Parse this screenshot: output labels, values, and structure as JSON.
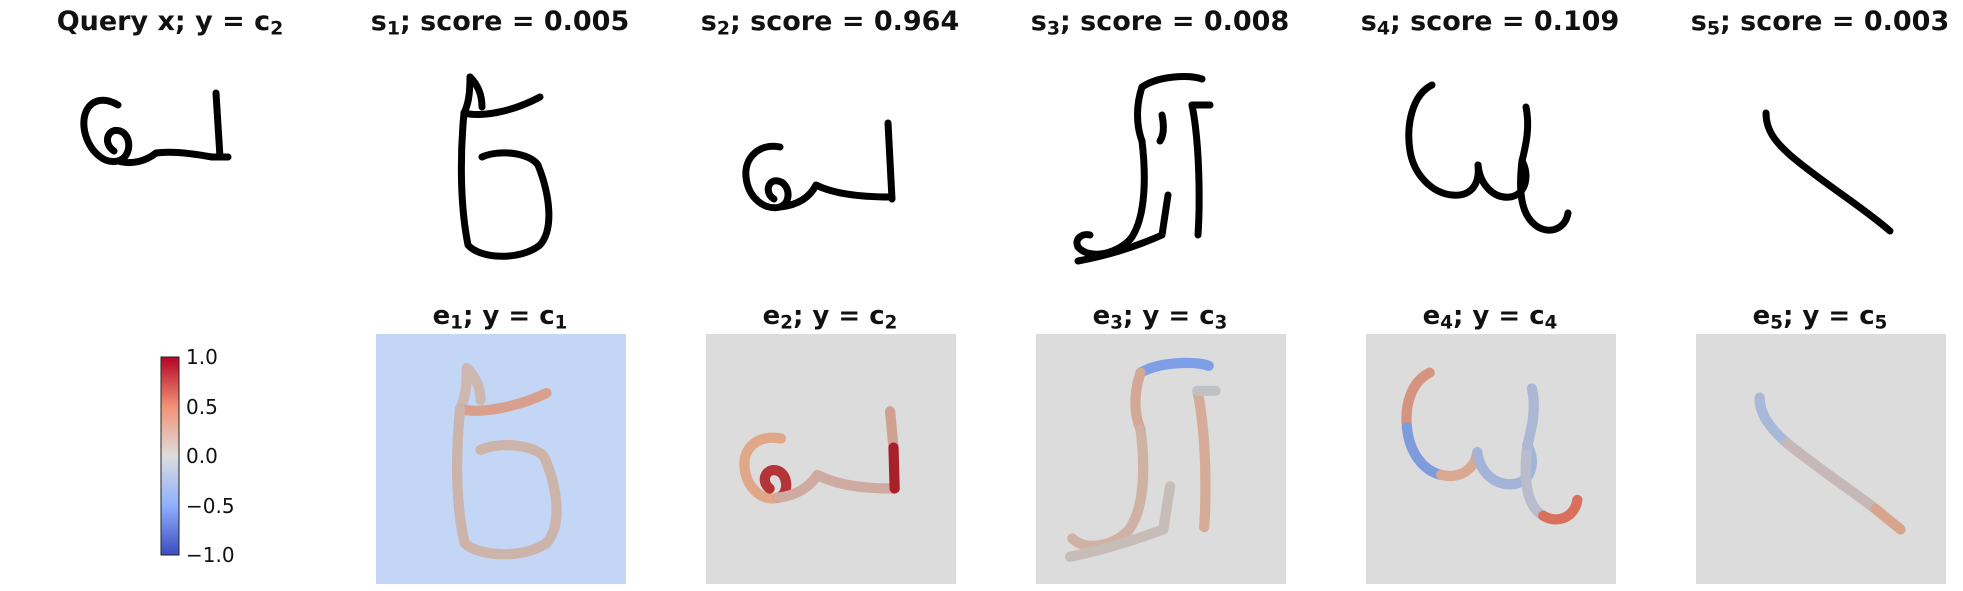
{
  "top_row": [
    {
      "title_prefix": "Query x; y",
      "title_eq": " = ",
      "title_sub_base": "c",
      "title_sub_index": "2",
      "glyph": "query"
    },
    {
      "title_base": "s",
      "title_index": "1",
      "title_rest": "; score = 0.005",
      "glyph": "s1"
    },
    {
      "title_base": "s",
      "title_index": "2",
      "title_rest": "; score = 0.964",
      "glyph": "s2"
    },
    {
      "title_base": "s",
      "title_index": "3",
      "title_rest": "; score = 0.008",
      "glyph": "s3"
    },
    {
      "title_base": "s",
      "title_index": "4",
      "title_rest": "; score = 0.109",
      "glyph": "s4"
    },
    {
      "title_base": "s",
      "title_index": "5",
      "title_rest": "; score = 0.003",
      "glyph": "s5"
    }
  ],
  "bottom_row": [
    {
      "title_base": "e",
      "title_index": "1",
      "title_mid": "; y",
      "title_eq": " = ",
      "title_cbase": "c",
      "title_cindex": "1",
      "bg_color": "#c3d6f5"
    },
    {
      "title_base": "e",
      "title_index": "2",
      "title_mid": "; y",
      "title_eq": " = ",
      "title_cbase": "c",
      "title_cindex": "2",
      "bg_color": "#dcdcdc"
    },
    {
      "title_base": "e",
      "title_index": "3",
      "title_mid": "; y",
      "title_eq": " = ",
      "title_cbase": "c",
      "title_cindex": "3",
      "bg_color": "#dcdcdc"
    },
    {
      "title_base": "e",
      "title_index": "4",
      "title_mid": "; y",
      "title_eq": " = ",
      "title_cbase": "c",
      "title_cindex": "4",
      "bg_color": "#dcdcdc"
    },
    {
      "title_base": "e",
      "title_index": "5",
      "title_mid": "; y",
      "title_eq": " = ",
      "title_cbase": "c",
      "title_cindex": "5",
      "bg_color": "#dcdcdc"
    }
  ],
  "colorbar": {
    "ticks": [
      "1.0",
      "0.5",
      "0.0",
      "−0.5",
      "−1.0"
    ],
    "colormap": "coolwarm",
    "min": -1.0,
    "max": 1.0
  }
}
